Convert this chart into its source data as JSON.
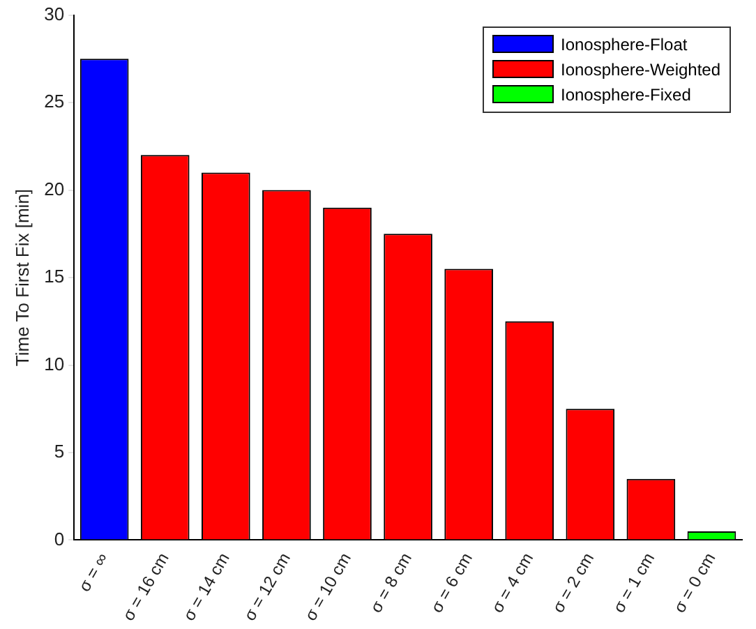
{
  "chart_data": {
    "type": "bar",
    "ylabel": "Time To First Fix [min]",
    "categories": [
      "σ = ∞",
      "σ = 16 cm",
      "σ = 14 cm",
      "σ = 12 cm",
      "σ = 10 cm",
      "σ = 8 cm",
      "σ = 6 cm",
      "σ = 4 cm",
      "σ = 2 cm",
      "σ = 1 cm",
      "σ = 0 cm"
    ],
    "series": [
      {
        "name": "Ionosphere-Float",
        "color": "#0000ff",
        "values": [
          27.5,
          null,
          null,
          null,
          null,
          null,
          null,
          null,
          null,
          null,
          null
        ]
      },
      {
        "name": "Ionosphere-Weighted",
        "color": "#ff0000",
        "values": [
          null,
          22,
          21,
          20,
          19,
          17.5,
          15.5,
          12.5,
          7.5,
          3.5,
          null
        ]
      },
      {
        "name": "Ionosphere-Fixed",
        "color": "#00ff00",
        "values": [
          null,
          null,
          null,
          null,
          null,
          null,
          null,
          null,
          null,
          null,
          0.5
        ]
      }
    ],
    "ylim": [
      0,
      30
    ],
    "yticks": [
      0,
      5,
      10,
      15,
      20,
      25,
      30
    ],
    "grid": false,
    "legend": "top right"
  }
}
